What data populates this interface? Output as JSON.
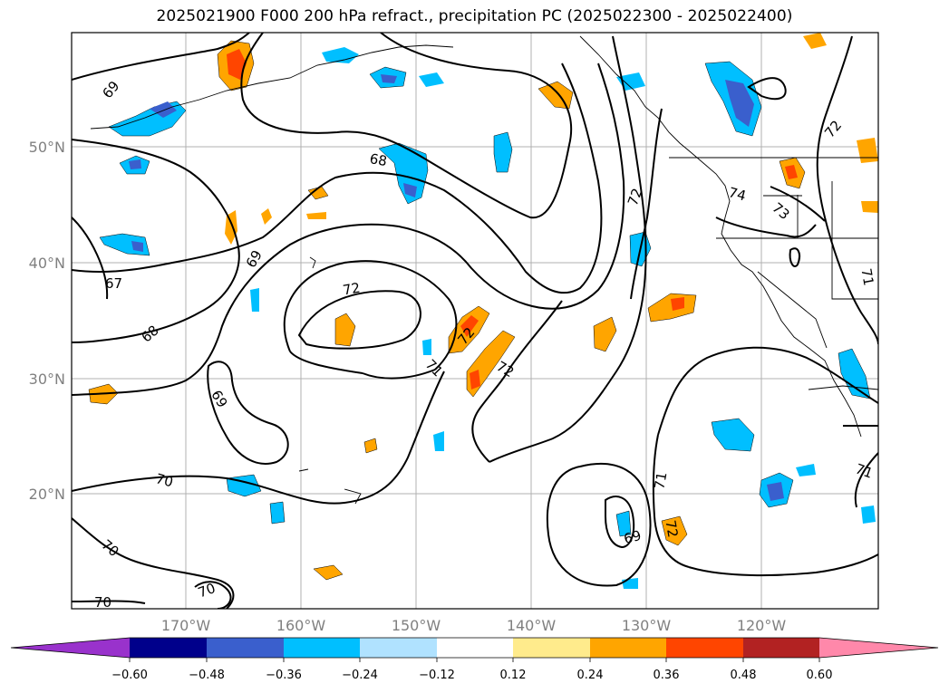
{
  "title": "2025021900 F000 200 hPa refract., precipitation PC (2025022300 - 2025022400)",
  "lat_labels": [
    "50°N",
    "40°N",
    "30°N",
    "20°N"
  ],
  "lon_labels": [
    "170°W",
    "160°W",
    "150°W",
    "140°W",
    "130°W",
    "120°W"
  ],
  "colorbar": {
    "colors": [
      "#9932cc",
      "#00008b",
      "#3a5fcd",
      "#00bfff",
      "#b0e2ff",
      "#ffffff",
      "#ffeb8c",
      "#ffa500",
      "#ff4500",
      "#b22222",
      "#ff88aa"
    ],
    "tick_labels": [
      "−0.60",
      "−0.48",
      "−0.36",
      "−0.24",
      "−0.12",
      "0.12",
      "0.24",
      "0.36",
      "0.48",
      "0.60"
    ]
  },
  "contour_labels": [
    "69",
    "68",
    "72",
    "72",
    "67",
    "68",
    "69",
    "69",
    "72",
    "71",
    "72",
    "72",
    "74",
    "73",
    "71",
    "71",
    "70",
    "70",
    "70",
    "69",
    "70",
    "71",
    "72"
  ]
}
